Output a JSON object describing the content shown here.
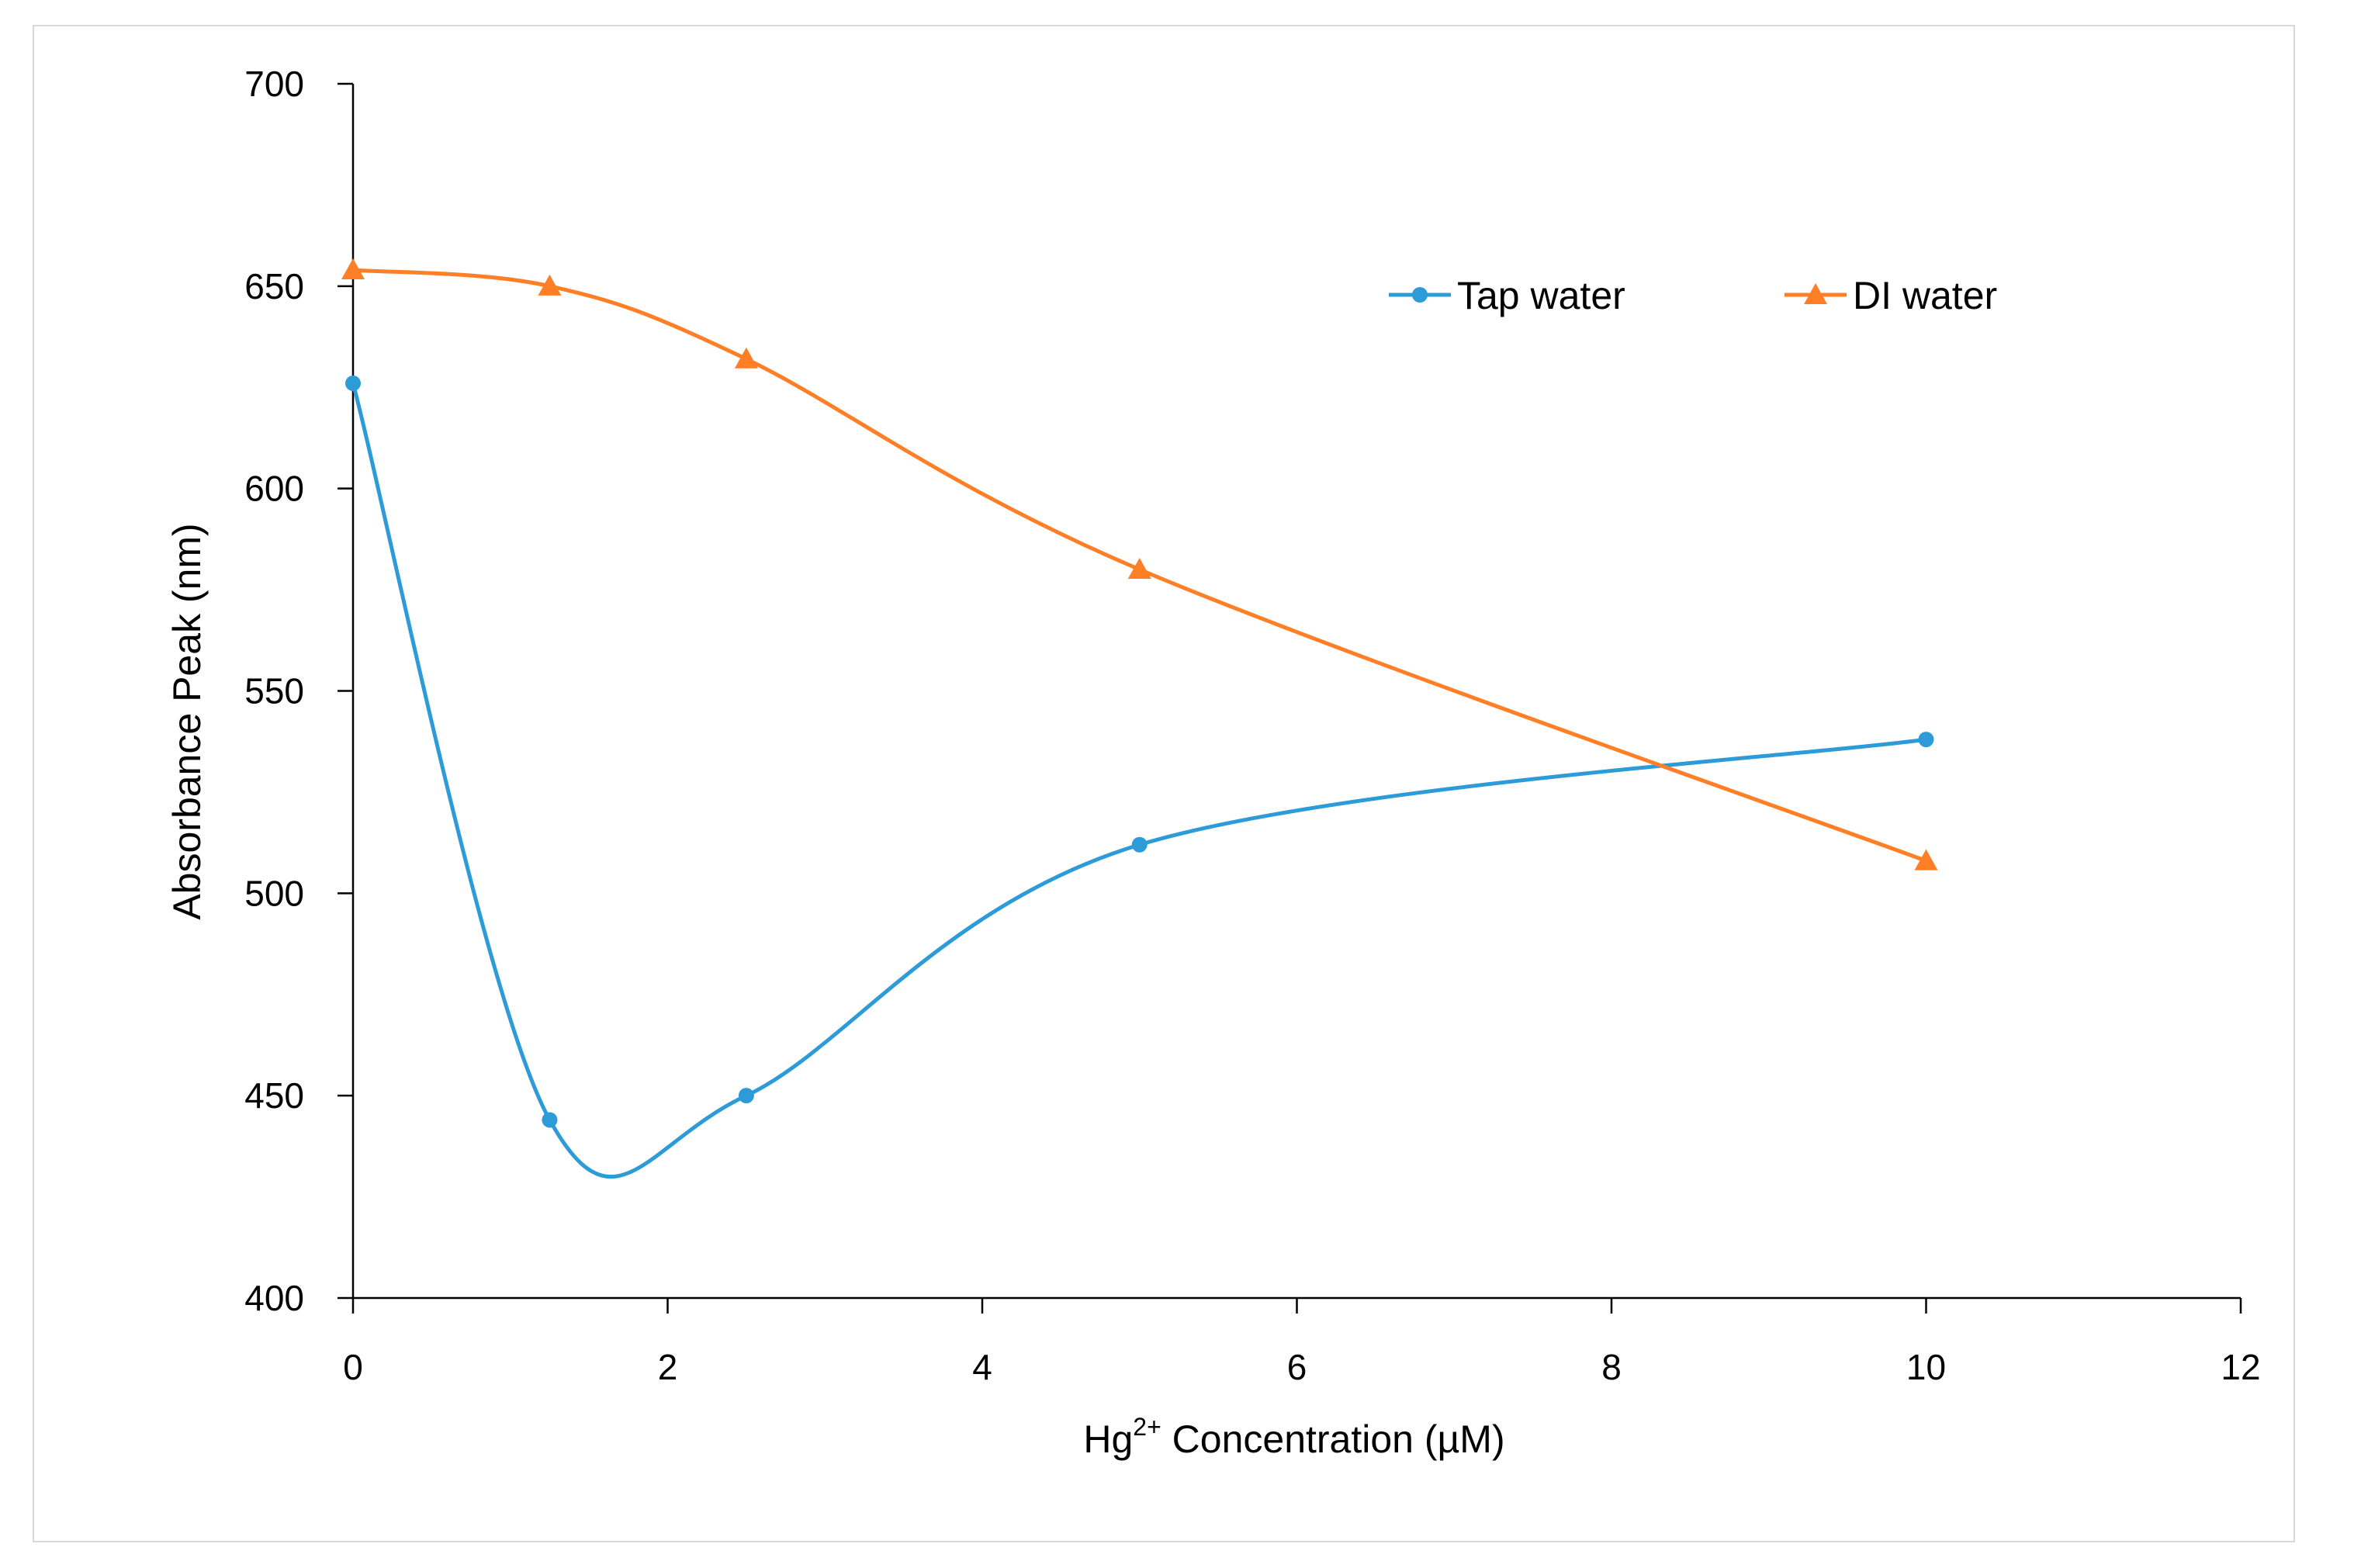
{
  "chart_data": {
    "type": "line",
    "xlabel": "Hg²⁺ Concentration (µM)",
    "xlabel_parts": {
      "base": "Hg",
      "sup": "2+",
      "rest": " Concentration (µM)"
    },
    "ylabel": "Absorbance Peak (nm)",
    "xlim": [
      0,
      12
    ],
    "ylim": [
      400,
      700
    ],
    "x_ticks": [
      0,
      2,
      4,
      6,
      8,
      10,
      12
    ],
    "y_ticks": [
      400,
      450,
      500,
      550,
      600,
      650,
      700
    ],
    "grid": false,
    "smooth": true,
    "legend_position": "top-right",
    "series": [
      {
        "name": "Tap water",
        "color": "#2e9bd9",
        "marker": "circle",
        "x": [
          0,
          1.25,
          2.5,
          5,
          10
        ],
        "y": [
          626,
          444,
          450,
          512,
          538
        ]
      },
      {
        "name": "DI water",
        "color": "#ff7f27",
        "marker": "triangle",
        "x": [
          0,
          1.25,
          2.5,
          5,
          10
        ],
        "y": [
          654,
          650,
          632,
          580,
          508
        ]
      }
    ]
  }
}
